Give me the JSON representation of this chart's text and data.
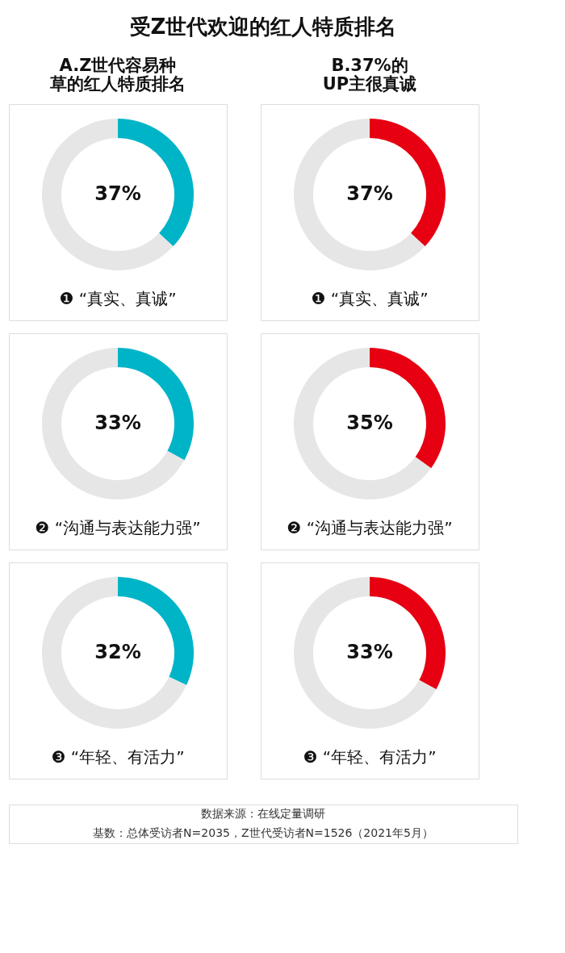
{
  "chart_data": [
    {
      "type": "other",
      "title": "受Z世代欢迎的红人特质排名",
      "annotations": [
        "数据来源：在线定量调研",
        "基数：总体受访者N=2035，Z世代受访者N=1526（2021年5月）"
      ]
    },
    {
      "type": "donut",
      "title": "A.Z世代容易种草的红人特质排名",
      "xlabel": "❶ “真实、真诚”",
      "categories": [
        null,
        null
      ],
      "values": [
        37,
        63
      ],
      "colors": [
        "#00b4c8",
        "#e6e6e6"
      ],
      "value_labels": [
        "37%",
        null
      ]
    },
    {
      "type": "donut",
      "xlabel": "❷ “沟通与表达能力强”",
      "categories": [
        null,
        null
      ],
      "values": [
        33,
        67
      ],
      "colors": [
        "#00b4c8",
        "#e6e6e6"
      ],
      "value_labels": [
        "33%",
        null
      ]
    },
    {
      "type": "donut",
      "xlabel": "❸ “年轻、有活力”",
      "categories": [
        null,
        null
      ],
      "values": [
        32,
        68
      ],
      "colors": [
        "#00b4c8",
        "#e6e6e6"
      ],
      "value_labels": [
        "32%",
        null
      ]
    },
    {
      "type": "donut",
      "title": "B.37%的UP主很真诚",
      "xlabel": "❶ “真实、真诚”",
      "categories": [
        null,
        null
      ],
      "values": [
        37,
        63
      ],
      "colors": [
        "#e60012",
        "#e6e6e6"
      ],
      "value_labels": [
        "37%",
        null
      ]
    },
    {
      "type": "donut",
      "xlabel": "❷ “沟通与表达能力强”",
      "categories": [
        null,
        null
      ],
      "values": [
        35,
        65
      ],
      "colors": [
        "#e60012",
        "#e6e6e6"
      ],
      "value_labels": [
        "35%",
        null
      ]
    },
    {
      "type": "donut",
      "xlabel": "❸ “年轻、有活力”",
      "categories": [
        null,
        null
      ],
      "values": [
        33,
        67
      ],
      "colors": [
        "#e60012",
        "#e6e6e6"
      ],
      "value_labels": [
        "33%",
        null
      ]
    }
  ]
}
